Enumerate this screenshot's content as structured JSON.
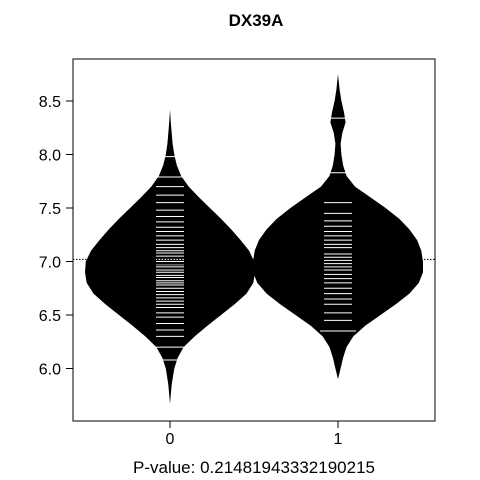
{
  "chart_data": {
    "type": "beanplot",
    "title": "DX39A",
    "subtitle": "P-value: 0.21481943332190215",
    "xlabel": "",
    "ylabel": "",
    "categories": [
      "0",
      "1"
    ],
    "ylim": [
      5.55,
      8.85
    ],
    "yticks": [
      6.0,
      6.5,
      7.0,
      7.5,
      8.0,
      8.5
    ],
    "ytick_labels": [
      "6.0",
      "6.5",
      "7.0",
      "7.5",
      "8.0",
      "8.5"
    ],
    "overall_mean": 7.02,
    "grid": false,
    "legend": "none",
    "colors": {
      "bean_fill": "#000000",
      "bean_lines": "#ffffff",
      "background": "#ffffff",
      "axis": "#000000"
    },
    "series": [
      {
        "category": "0",
        "mean": 6.98,
        "density": [
          [
            5.67,
            0.0
          ],
          [
            5.85,
            0.02
          ],
          [
            6.0,
            0.05
          ],
          [
            6.1,
            0.09
          ],
          [
            6.2,
            0.16
          ],
          [
            6.3,
            0.29
          ],
          [
            6.4,
            0.44
          ],
          [
            6.5,
            0.6
          ],
          [
            6.6,
            0.76
          ],
          [
            6.7,
            0.9
          ],
          [
            6.8,
            0.98
          ],
          [
            6.9,
            1.0
          ],
          [
            7.0,
            0.99
          ],
          [
            7.1,
            0.93
          ],
          [
            7.2,
            0.83
          ],
          [
            7.3,
            0.72
          ],
          [
            7.4,
            0.6
          ],
          [
            7.5,
            0.47
          ],
          [
            7.6,
            0.34
          ],
          [
            7.7,
            0.22
          ],
          [
            7.8,
            0.13
          ],
          [
            7.9,
            0.08
          ],
          [
            8.0,
            0.05
          ],
          [
            8.1,
            0.03
          ],
          [
            8.2,
            0.02
          ],
          [
            8.3,
            0.01
          ],
          [
            8.42,
            0.0
          ]
        ],
        "observations": [
          6.08,
          6.2,
          6.3,
          6.36,
          6.42,
          6.48,
          6.52,
          6.57,
          6.6,
          6.63,
          6.66,
          6.69,
          6.72,
          6.75,
          6.78,
          6.8,
          6.82,
          6.85,
          6.87,
          6.9,
          6.92,
          6.95,
          6.97,
          7.0,
          7.02,
          7.05,
          7.08,
          7.1,
          7.13,
          7.16,
          7.2,
          7.24,
          7.28,
          7.32,
          7.37,
          7.42,
          7.48,
          7.55,
          7.62,
          7.7,
          7.79,
          7.98
        ]
      },
      {
        "category": "1",
        "mean": 7.1,
        "density": [
          [
            5.9,
            0.0
          ],
          [
            6.0,
            0.03
          ],
          [
            6.1,
            0.06
          ],
          [
            6.2,
            0.1
          ],
          [
            6.3,
            0.18
          ],
          [
            6.4,
            0.32
          ],
          [
            6.5,
            0.5
          ],
          [
            6.6,
            0.68
          ],
          [
            6.7,
            0.84
          ],
          [
            6.8,
            0.95
          ],
          [
            6.9,
            1.0
          ],
          [
            7.0,
            1.0
          ],
          [
            7.1,
            0.98
          ],
          [
            7.2,
            0.93
          ],
          [
            7.3,
            0.84
          ],
          [
            7.4,
            0.72
          ],
          [
            7.5,
            0.56
          ],
          [
            7.6,
            0.38
          ],
          [
            7.7,
            0.2
          ],
          [
            7.8,
            0.1
          ],
          [
            7.9,
            0.06
          ],
          [
            8.0,
            0.04
          ],
          [
            8.1,
            0.03
          ],
          [
            8.2,
            0.05
          ],
          [
            8.3,
            0.09
          ],
          [
            8.4,
            0.07
          ],
          [
            8.5,
            0.04
          ],
          [
            8.6,
            0.02
          ],
          [
            8.75,
            0.0
          ]
        ],
        "observations": [
          6.35,
          6.45,
          6.52,
          6.6,
          6.65,
          6.7,
          6.75,
          6.8,
          6.84,
          6.88,
          6.92,
          6.95,
          6.98,
          7.01,
          7.04,
          7.07,
          7.1,
          7.13,
          7.16,
          7.2,
          7.24,
          7.28,
          7.33,
          7.38,
          7.45,
          7.55,
          7.83,
          8.34
        ]
      }
    ]
  }
}
